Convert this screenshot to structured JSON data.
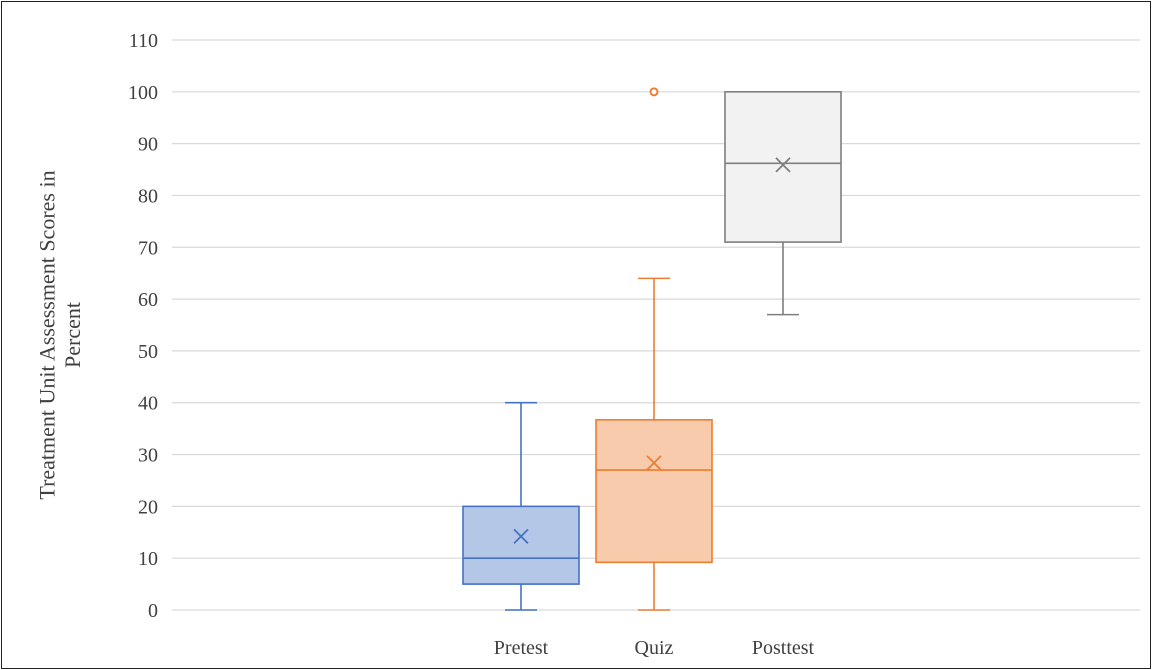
{
  "chart_data": {
    "type": "box",
    "title": "",
    "xlabel": "",
    "ylabel": [
      "Treatment Unit Assessment Scores in",
      "Percent"
    ],
    "ylim": [
      0,
      110
    ],
    "yticks": [
      0,
      10,
      20,
      30,
      40,
      50,
      60,
      70,
      80,
      90,
      100,
      110
    ],
    "grid": true,
    "legend": "none",
    "categories": [
      "Pretest",
      "Quiz",
      "Posttest"
    ],
    "series": [
      {
        "category": "Pretest",
        "min": 0,
        "q1": 5,
        "median": 10,
        "q3": 20,
        "max": 40,
        "mean": 14.2,
        "outliers": [],
        "stroke": "#4472c4",
        "fill": "#b4c7e7"
      },
      {
        "category": "Quiz",
        "min": 0,
        "q1": 9.2,
        "median": 27,
        "q3": 36.7,
        "max": 64,
        "mean": 28.4,
        "outliers": [
          100
        ],
        "stroke": "#ed7d31",
        "fill": "#f8cbad"
      },
      {
        "category": "Posttest",
        "min": 57,
        "q1": 71,
        "median": 86.2,
        "q3": 100,
        "max": 100,
        "mean": 85.9,
        "outliers": [],
        "stroke": "#7f7f7f",
        "fill": "#f2f2f2"
      }
    ]
  }
}
